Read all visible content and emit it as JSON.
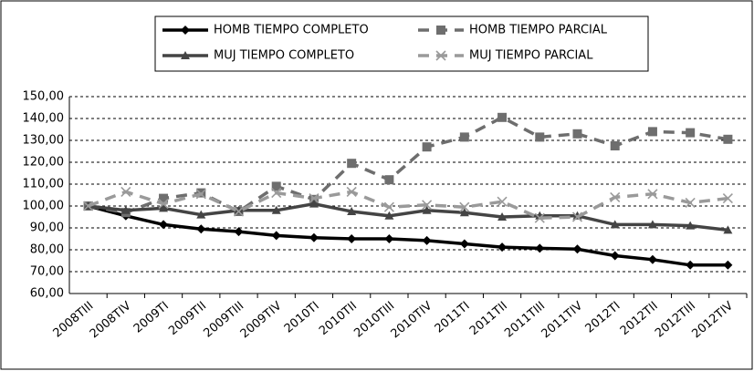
{
  "chart_data": {
    "type": "line",
    "categories": [
      "2008TIII",
      "2008TIV",
      "2009TI",
      "2009TII",
      "2009TIII",
      "2009TIV",
      "2010TI",
      "2010TII",
      "2010TIII",
      "2010TIV",
      "2011TI",
      "2011TII",
      "2011TIII",
      "2011TIV",
      "2012TI",
      "2012TII",
      "2012TIII",
      "2012TIV"
    ],
    "series": [
      {
        "name": "HOMB TIEMPO COMPLETO",
        "color": "#000000",
        "marker": "diamond",
        "line_style": "solid",
        "values": [
          100,
          95.5,
          91.5,
          89.5,
          88.3,
          86.5,
          85.5,
          85,
          85,
          84.2,
          82.7,
          81.2,
          80.7,
          80.3,
          77.3,
          75.5,
          73,
          73
        ]
      },
      {
        "name": "HOMB TIEMPO PARCIAL",
        "color": "#6e6e6e",
        "marker": "square",
        "line_style": "dashed",
        "values": [
          100,
          97,
          103.5,
          106,
          97.5,
          109,
          103,
          119.5,
          112,
          127,
          131.5,
          140.5,
          131.5,
          133,
          127.5,
          134,
          133.5,
          130.5
        ]
      },
      {
        "name": "MUJ TIEMPO COMPLETO",
        "color": "#444444",
        "marker": "triangle",
        "line_style": "solid",
        "values": [
          100,
          98,
          99,
          96,
          98,
          98,
          101,
          97.5,
          95.5,
          98,
          97,
          95,
          95.5,
          95.5,
          91.5,
          91.5,
          91,
          89
        ]
      },
      {
        "name": "MUJ TIEMPO PARCIAL",
        "color": "#9a9a9a",
        "marker": "x",
        "line_style": "dashed",
        "values": [
          100,
          106.5,
          101,
          105.5,
          97.5,
          106,
          103.5,
          106.5,
          99.5,
          100.5,
          99.5,
          102,
          94.5,
          95,
          104,
          105.5,
          101.5,
          103.5
        ]
      }
    ],
    "ylim": [
      60,
      150
    ],
    "yticks": [
      {
        "value": 60,
        "label": "60,00"
      },
      {
        "value": 70,
        "label": "70,00"
      },
      {
        "value": 80,
        "label": "80,00"
      },
      {
        "value": 90,
        "label": "90,00"
      },
      {
        "value": 100,
        "label": "100,00"
      },
      {
        "value": 110,
        "label": "110,00"
      },
      {
        "value": 120,
        "label": "120,00"
      },
      {
        "value": 130,
        "label": "130,00"
      },
      {
        "value": 140,
        "label": "140,00"
      },
      {
        "value": 150,
        "label": "150,00"
      }
    ],
    "grid": true,
    "legend": "top"
  }
}
